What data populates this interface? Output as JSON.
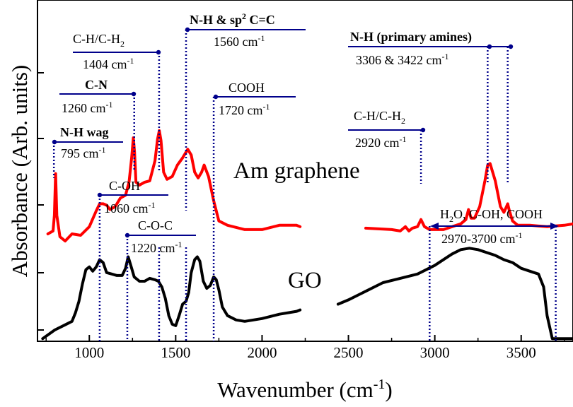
{
  "chart_data": {
    "type": "line",
    "xlabel": "Wavenumber (cm-1)",
    "ylabel": "Absorbance (Arb. units)",
    "xlim": [
      700,
      3800
    ],
    "x_ticks": [
      1000,
      1500,
      2000,
      2500,
      3000,
      3500
    ],
    "grid": false,
    "legend": "none",
    "series": [
      {
        "name": "Am graphene",
        "color": "#ff0000",
        "x": [
          760,
          790,
          798,
          805,
          812,
          830,
          860,
          900,
          950,
          1000,
          1040,
          1060,
          1080,
          1100,
          1120,
          1150,
          1180,
          1210,
          1230,
          1245,
          1255,
          1262,
          1270,
          1290,
          1320,
          1350,
          1380,
          1395,
          1405,
          1415,
          1430,
          1450,
          1480,
          1510,
          1540,
          1570,
          1590,
          1610,
          1630,
          1650,
          1665,
          1690,
          1720,
          1750,
          1800,
          1900,
          2000,
          2100,
          2200,
          2220,
          2440,
          2600,
          2750,
          2800,
          2830,
          2850,
          2870,
          2900,
          2920,
          2940,
          2970,
          3050,
          3100,
          3150,
          3180,
          3195,
          3210,
          3230,
          3260,
          3290,
          3306,
          3320,
          3350,
          3380,
          3400,
          3415,
          3422,
          3430,
          3450,
          3480,
          3550,
          3650,
          3750,
          3800
        ],
        "y": [
          0.335,
          0.345,
          0.4,
          0.545,
          0.4,
          0.325,
          0.31,
          0.335,
          0.33,
          0.36,
          0.415,
          0.44,
          0.44,
          0.435,
          0.42,
          0.43,
          0.46,
          0.47,
          0.515,
          0.6,
          0.67,
          0.62,
          0.515,
          0.505,
          0.515,
          0.52,
          0.59,
          0.665,
          0.695,
          0.66,
          0.55,
          0.525,
          0.535,
          0.575,
          0.6,
          0.63,
          0.61,
          0.55,
          0.53,
          0.55,
          0.575,
          0.535,
          0.45,
          0.38,
          0.365,
          0.35,
          0.35,
          0.365,
          0.365,
          0.36,
          0.36,
          0.355,
          0.35,
          0.345,
          0.36,
          0.345,
          0.355,
          0.36,
          0.385,
          0.36,
          0.35,
          0.35,
          0.36,
          0.37,
          0.385,
          0.42,
          0.39,
          0.39,
          0.43,
          0.52,
          0.575,
          0.58,
          0.52,
          0.43,
          0.41,
          0.43,
          0.44,
          0.42,
          0.38,
          0.365,
          0.365,
          0.36,
          0.365,
          0.37
        ]
      },
      {
        "name": "GO",
        "color": "#000000",
        "x": [
          730,
          800,
          850,
          900,
          920,
          940,
          960,
          980,
          1000,
          1020,
          1040,
          1060,
          1080,
          1100,
          1130,
          1160,
          1190,
          1210,
          1225,
          1240,
          1260,
          1290,
          1320,
          1350,
          1380,
          1400,
          1420,
          1440,
          1460,
          1480,
          1500,
          1520,
          1540,
          1560,
          1575,
          1590,
          1610,
          1625,
          1640,
          1660,
          1680,
          1700,
          1720,
          1735,
          1750,
          1770,
          1800,
          1850,
          1900,
          2000,
          2100,
          2200,
          2220,
          2440,
          2500,
          2600,
          2700,
          2800,
          2900,
          3000,
          3100,
          3150,
          3200,
          3250,
          3300,
          3350,
          3400,
          3450,
          3500,
          3550,
          3600,
          3630,
          3650,
          3680,
          3720,
          3800
        ],
        "y": [
          -0.03,
          0.0,
          0.015,
          0.03,
          0.06,
          0.1,
          0.16,
          0.21,
          0.22,
          0.205,
          0.22,
          0.245,
          0.235,
          0.2,
          0.195,
          0.19,
          0.19,
          0.215,
          0.255,
          0.225,
          0.185,
          0.17,
          0.17,
          0.18,
          0.175,
          0.17,
          0.15,
          0.11,
          0.05,
          0.02,
          0.015,
          0.05,
          0.09,
          0.1,
          0.13,
          0.2,
          0.245,
          0.255,
          0.24,
          0.17,
          0.145,
          0.155,
          0.185,
          0.175,
          0.14,
          0.08,
          0.05,
          0.035,
          0.03,
          0.04,
          0.055,
          0.065,
          0.07,
          0.09,
          0.105,
          0.135,
          0.165,
          0.18,
          0.195,
          0.225,
          0.265,
          0.28,
          0.285,
          0.28,
          0.27,
          0.26,
          0.245,
          0.235,
          0.215,
          0.205,
          0.195,
          0.15,
          0.05,
          -0.03,
          -0.03,
          -0.03
        ]
      }
    ],
    "sample_labels": {
      "am": "Am graphene",
      "go": "GO"
    },
    "annotations": {
      "nh_wag": {
        "title": "N-H wag",
        "value": "795 cm-1",
        "x": 795,
        "color": "#00008b"
      },
      "cn": {
        "title": "C-N",
        "value": "1260 cm-1",
        "x": 1260,
        "color": "#00008b"
      },
      "ch_low": {
        "title": "C-H/C-H2",
        "value": "1404 cm-1",
        "x": 1404,
        "color": "#00008b"
      },
      "nh_sp2": {
        "title": "N-H & sp2 C=C",
        "value": "1560  cm-1",
        "x": 1560,
        "color": "#00008b"
      },
      "cooh": {
        "title": "COOH",
        "value": "1720  cm-1",
        "x": 1720,
        "color": "#00008b"
      },
      "ch_high": {
        "title": "C-H/C-H2",
        "value": "2920 cm-1",
        "x": 2920,
        "color": "#00008b"
      },
      "nh_primary": {
        "title": "N-H (primary amines)",
        "value": "3306 & 3422 cm-1",
        "x": [
          3306,
          3422
        ],
        "color": "#00008b"
      },
      "coh": {
        "title": "C-OH",
        "value": "1060 cm-1",
        "x": 1060,
        "color": "#00008b"
      },
      "coc": {
        "title": "C-O-C",
        "value": "1220 cm-1",
        "x": 1220,
        "color": "#00008b"
      },
      "water": {
        "title": "H2O, C-OH, COOH",
        "value": "2970-3700 cm-1",
        "x": [
          2970,
          3700
        ],
        "color": "#00008b"
      }
    }
  }
}
